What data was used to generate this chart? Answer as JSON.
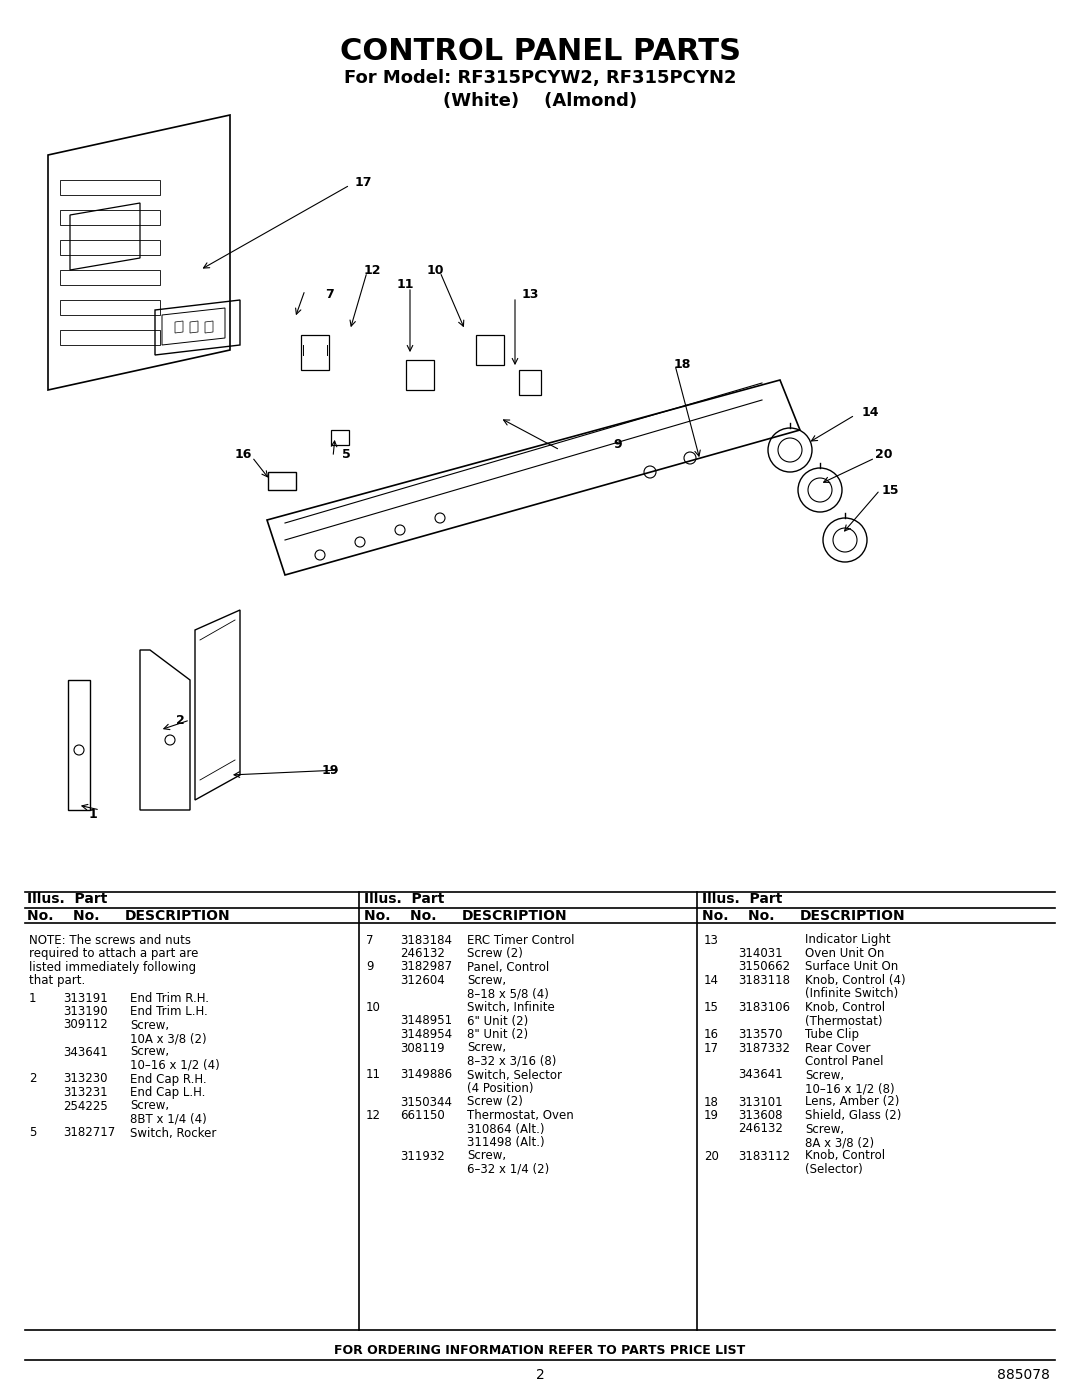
{
  "title": "CONTROL PANEL PARTS",
  "subtitle1": "For Model: RF315PCYW2, RF315PCYN2",
  "subtitle2": "(White)    (Almond)",
  "bg_color": "#ffffff",
  "page_number": "2",
  "doc_number": "885078",
  "footer_text": "FOR ORDERING INFORMATION REFER TO PARTS PRICE LIST",
  "header1_col1": "Illus.  Part",
  "header2_col1": "No.    No.          DESCRIPTION",
  "header1_col2": "Illus.  Part",
  "header2_col2": "No.    No.          DESCRIPTION",
  "header1_col3": "Illus.  Part",
  "header2_col3": "No.    No.          DESCRIPTION",
  "note": "NOTE: The screws and nuts\nrequired to attach a part are\nlisted immediately following\nthat part.",
  "col1_entries": [
    {
      "illus": "1",
      "part": "313191",
      "desc": "End Trim R.H."
    },
    {
      "illus": "",
      "part": "313190",
      "desc": "End Trim L.H."
    },
    {
      "illus": "",
      "part": "309112",
      "desc": "Screw,"
    },
    {
      "illus": "",
      "part": "",
      "desc": "10A x 3/8 (2)"
    },
    {
      "illus": "",
      "part": "343641",
      "desc": "Screw,"
    },
    {
      "illus": "",
      "part": "",
      "desc": "10–16 x 1/2 (4)"
    },
    {
      "illus": "2",
      "part": "313230",
      "desc": "End Cap R.H."
    },
    {
      "illus": "",
      "part": "313231",
      "desc": "End Cap L.H."
    },
    {
      "illus": "",
      "part": "254225",
      "desc": "Screw,"
    },
    {
      "illus": "",
      "part": "",
      "desc": "8BT x 1/4 (4)"
    },
    {
      "illus": "5",
      "part": "3182717",
      "desc": "Switch, Rocker"
    }
  ],
  "col2_entries": [
    {
      "illus": "7",
      "part": "3183184",
      "desc": "ERC Timer Control"
    },
    {
      "illus": "",
      "part": "246132",
      "desc": "Screw (2)"
    },
    {
      "illus": "9",
      "part": "3182987",
      "desc": "Panel, Control"
    },
    {
      "illus": "",
      "part": "312604",
      "desc": "Screw,"
    },
    {
      "illus": "",
      "part": "",
      "desc": "8–18 x 5/8 (4)"
    },
    {
      "illus": "10",
      "part": "",
      "desc": "Switch, Infinite"
    },
    {
      "illus": "",
      "part": "3148951",
      "desc": "6\" Unit (2)"
    },
    {
      "illus": "",
      "part": "3148954",
      "desc": "8\" Unit (2)"
    },
    {
      "illus": "",
      "part": "308119",
      "desc": "Screw,"
    },
    {
      "illus": "",
      "part": "",
      "desc": "8–32 x 3/16 (8)"
    },
    {
      "illus": "11",
      "part": "3149886",
      "desc": "Switch, Selector"
    },
    {
      "illus": "",
      "part": "",
      "desc": "(4 Position)"
    },
    {
      "illus": "",
      "part": "3150344",
      "desc": "Screw (2)"
    },
    {
      "illus": "12",
      "part": "661150",
      "desc": "Thermostat, Oven"
    },
    {
      "illus": "",
      "part": "",
      "desc": "310864 (Alt.)"
    },
    {
      "illus": "",
      "part": "",
      "desc": "311498 (Alt.)"
    },
    {
      "illus": "",
      "part": "311932",
      "desc": "Screw,"
    },
    {
      "illus": "",
      "part": "",
      "desc": "6–32 x 1/4 (2)"
    }
  ],
  "col3_entries": [
    {
      "illus": "13",
      "part": "",
      "desc": "Indicator Light"
    },
    {
      "illus": "",
      "part": "314031",
      "desc": "Oven Unit On"
    },
    {
      "illus": "",
      "part": "3150662",
      "desc": "Surface Unit On"
    },
    {
      "illus": "14",
      "part": "3183118",
      "desc": "Knob, Control (4)"
    },
    {
      "illus": "",
      "part": "",
      "desc": "(Infinite Switch)"
    },
    {
      "illus": "15",
      "part": "3183106",
      "desc": "Knob, Control"
    },
    {
      "illus": "",
      "part": "",
      "desc": "(Thermostat)"
    },
    {
      "illus": "16",
      "part": "313570",
      "desc": "Tube Clip"
    },
    {
      "illus": "17",
      "part": "3187332",
      "desc": "Rear Cover"
    },
    {
      "illus": "",
      "part": "",
      "desc": "Control Panel"
    },
    {
      "illus": "",
      "part": "343641",
      "desc": "Screw,"
    },
    {
      "illus": "",
      "part": "",
      "desc": "10–16 x 1/2 (8)"
    },
    {
      "illus": "18",
      "part": "313101",
      "desc": "Lens, Amber (2)"
    },
    {
      "illus": "19",
      "part": "313608",
      "desc": "Shield, Glass (2)"
    },
    {
      "illus": "",
      "part": "246132",
      "desc": "Screw,"
    },
    {
      "illus": "",
      "part": "",
      "desc": "8A x 3/8 (2)"
    },
    {
      "illus": "20",
      "part": "3183112",
      "desc": "Knob, Control"
    },
    {
      "illus": "",
      "part": "",
      "desc": "(Selector)"
    }
  ]
}
